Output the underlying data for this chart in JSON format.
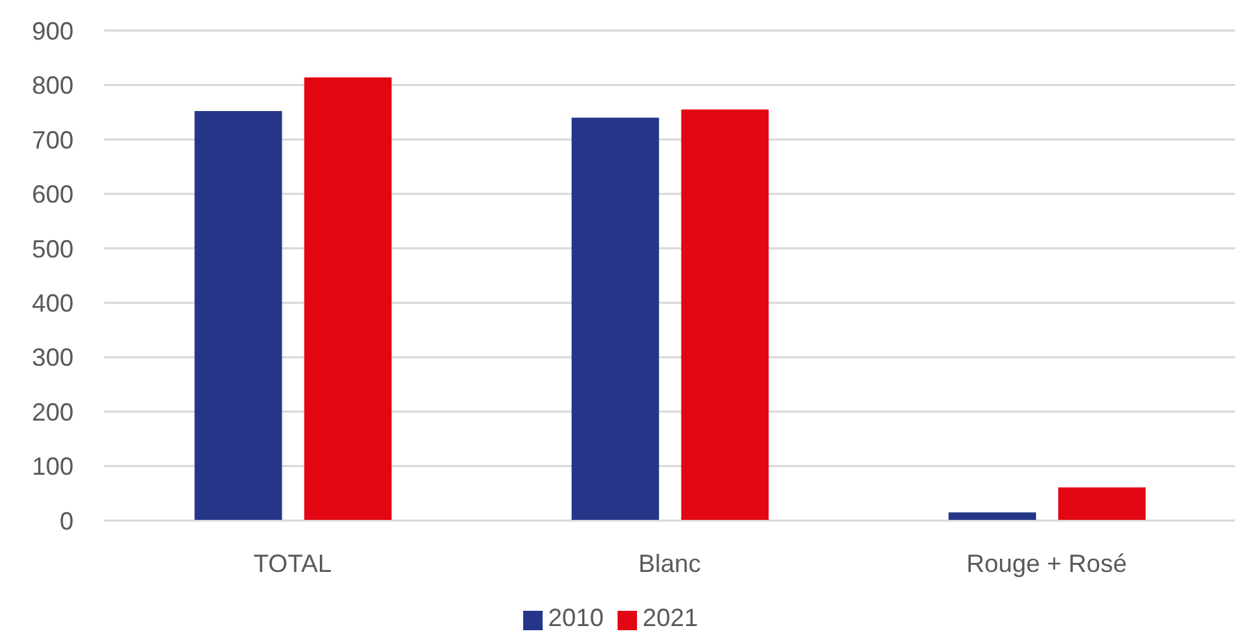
{
  "chart_data": {
    "type": "bar",
    "categories": [
      "TOTAL",
      "Blanc",
      "Rouge + Rosé"
    ],
    "series": [
      {
        "name": "2010",
        "color": "#253689",
        "values": [
          752,
          740,
          15
        ]
      },
      {
        "name": "2021",
        "color": "#e30613",
        "values": [
          814,
          755,
          61
        ]
      }
    ],
    "ylim": [
      0,
      900
    ],
    "yticks": [
      0,
      100,
      200,
      300,
      400,
      500,
      600,
      700,
      800,
      900
    ],
    "grid": "y",
    "legend": "bottom"
  }
}
